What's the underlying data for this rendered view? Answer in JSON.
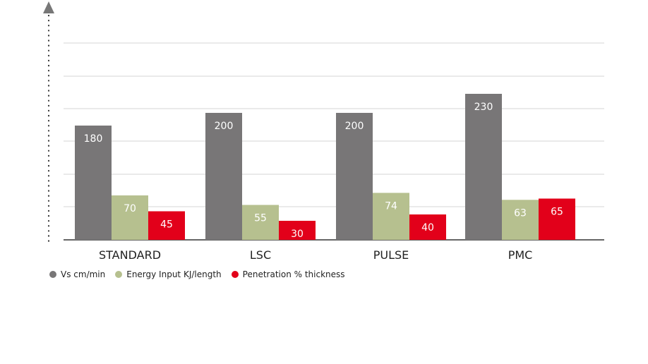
{
  "chart_data": {
    "type": "bar",
    "categories": [
      "STANDARD",
      "LSC",
      "PULSE",
      "PMC"
    ],
    "series": [
      {
        "name": "Vs cm/min",
        "values": [
          180,
          200,
          200,
          230
        ],
        "color": "#787677"
      },
      {
        "name": "Energy Input KJ/length",
        "values": [
          70,
          55,
          74,
          63
        ],
        "color": "#b6c08f"
      },
      {
        "name": "Penetration % thickness",
        "values": [
          45,
          30,
          40,
          65
        ],
        "color": "#e2001a"
      }
    ],
    "title": "",
    "xlabel": "",
    "ylabel": "",
    "axis_style": "dotted-arrow",
    "grid": true,
    "legend_position": "bottom-left"
  }
}
